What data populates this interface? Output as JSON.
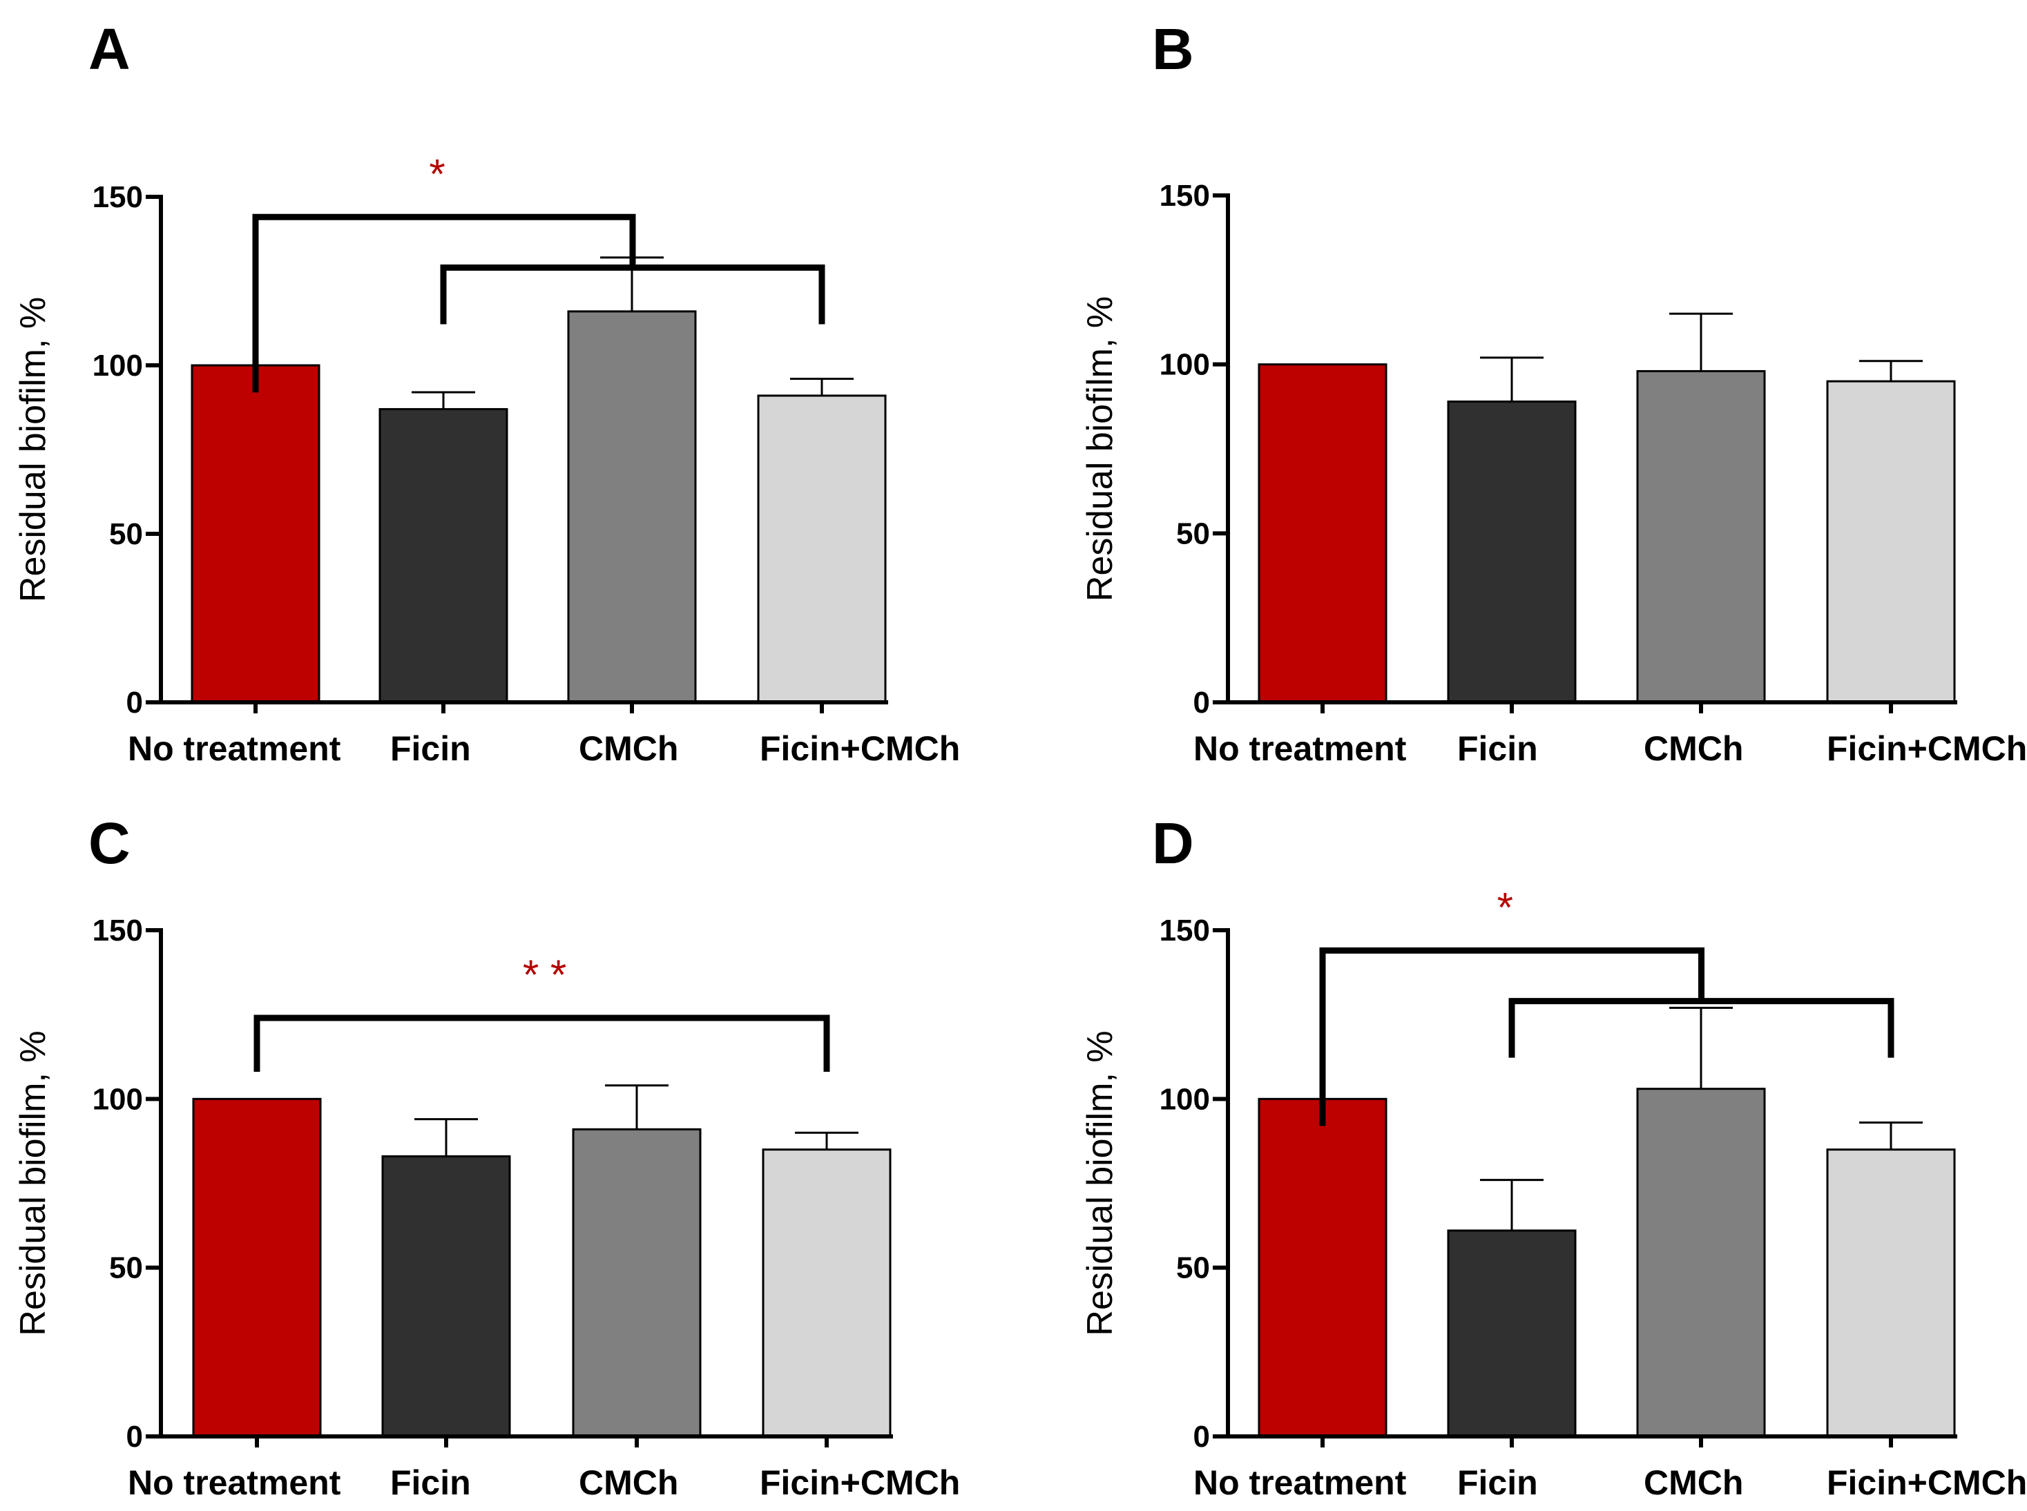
{
  "figure": {
    "colors": {
      "no_treatment": "#bd0000",
      "ficin": "#303030",
      "cmch": "#808080",
      "ficin_cmch": "#d6d6d6",
      "significance": "#b30000"
    }
  },
  "chart_data": [
    {
      "panel": "A",
      "type": "bar",
      "ylabel": "Residual biofilm, %",
      "ylim": [
        0,
        150
      ],
      "yticks": [
        "0",
        "50",
        "100",
        "150"
      ],
      "categories": [
        "No treatment",
        "Ficin",
        "CMCh",
        "Ficin+CMCh"
      ],
      "values": [
        100,
        87,
        116,
        91
      ],
      "errors": [
        0,
        5,
        16,
        5
      ],
      "significance": [
        {
          "label": "*",
          "type": "nested",
          "from": 0,
          "to": [
            1,
            3
          ]
        }
      ]
    },
    {
      "panel": "B",
      "type": "bar",
      "ylabel": "Residual biofilm, %",
      "ylim": [
        0,
        150
      ],
      "yticks": [
        "0",
        "50",
        "100",
        "150"
      ],
      "categories": [
        "No treatment",
        "Ficin",
        "CMCh",
        "Ficin+CMCh"
      ],
      "values": [
        100,
        89,
        98,
        95
      ],
      "errors": [
        0,
        13,
        17,
        6
      ],
      "significance": []
    },
    {
      "panel": "C",
      "type": "bar",
      "ylabel": "Residual biofilm, %",
      "ylim": [
        0,
        150
      ],
      "yticks": [
        "0",
        "50",
        "100",
        "150"
      ],
      "categories": [
        "No treatment",
        "Ficin",
        "CMCh",
        "Ficin+CMCh"
      ],
      "values": [
        100,
        83,
        91,
        85
      ],
      "errors": [
        0,
        11,
        13,
        5
      ],
      "significance": [
        {
          "label": "* *",
          "type": "simple",
          "from": 0,
          "to": 3
        }
      ]
    },
    {
      "panel": "D",
      "type": "bar",
      "ylabel": "Residual biofilm, %",
      "ylim": [
        0,
        150
      ],
      "yticks": [
        "0",
        "50",
        "100",
        "150"
      ],
      "categories": [
        "No treatment",
        "Ficin",
        "CMCh",
        "Ficin+CMCh"
      ],
      "values": [
        100,
        61,
        103,
        85
      ],
      "errors": [
        0,
        15,
        24,
        8
      ],
      "significance": [
        {
          "label": "*",
          "type": "nested",
          "from": 0,
          "to": [
            1,
            3
          ]
        }
      ]
    }
  ]
}
